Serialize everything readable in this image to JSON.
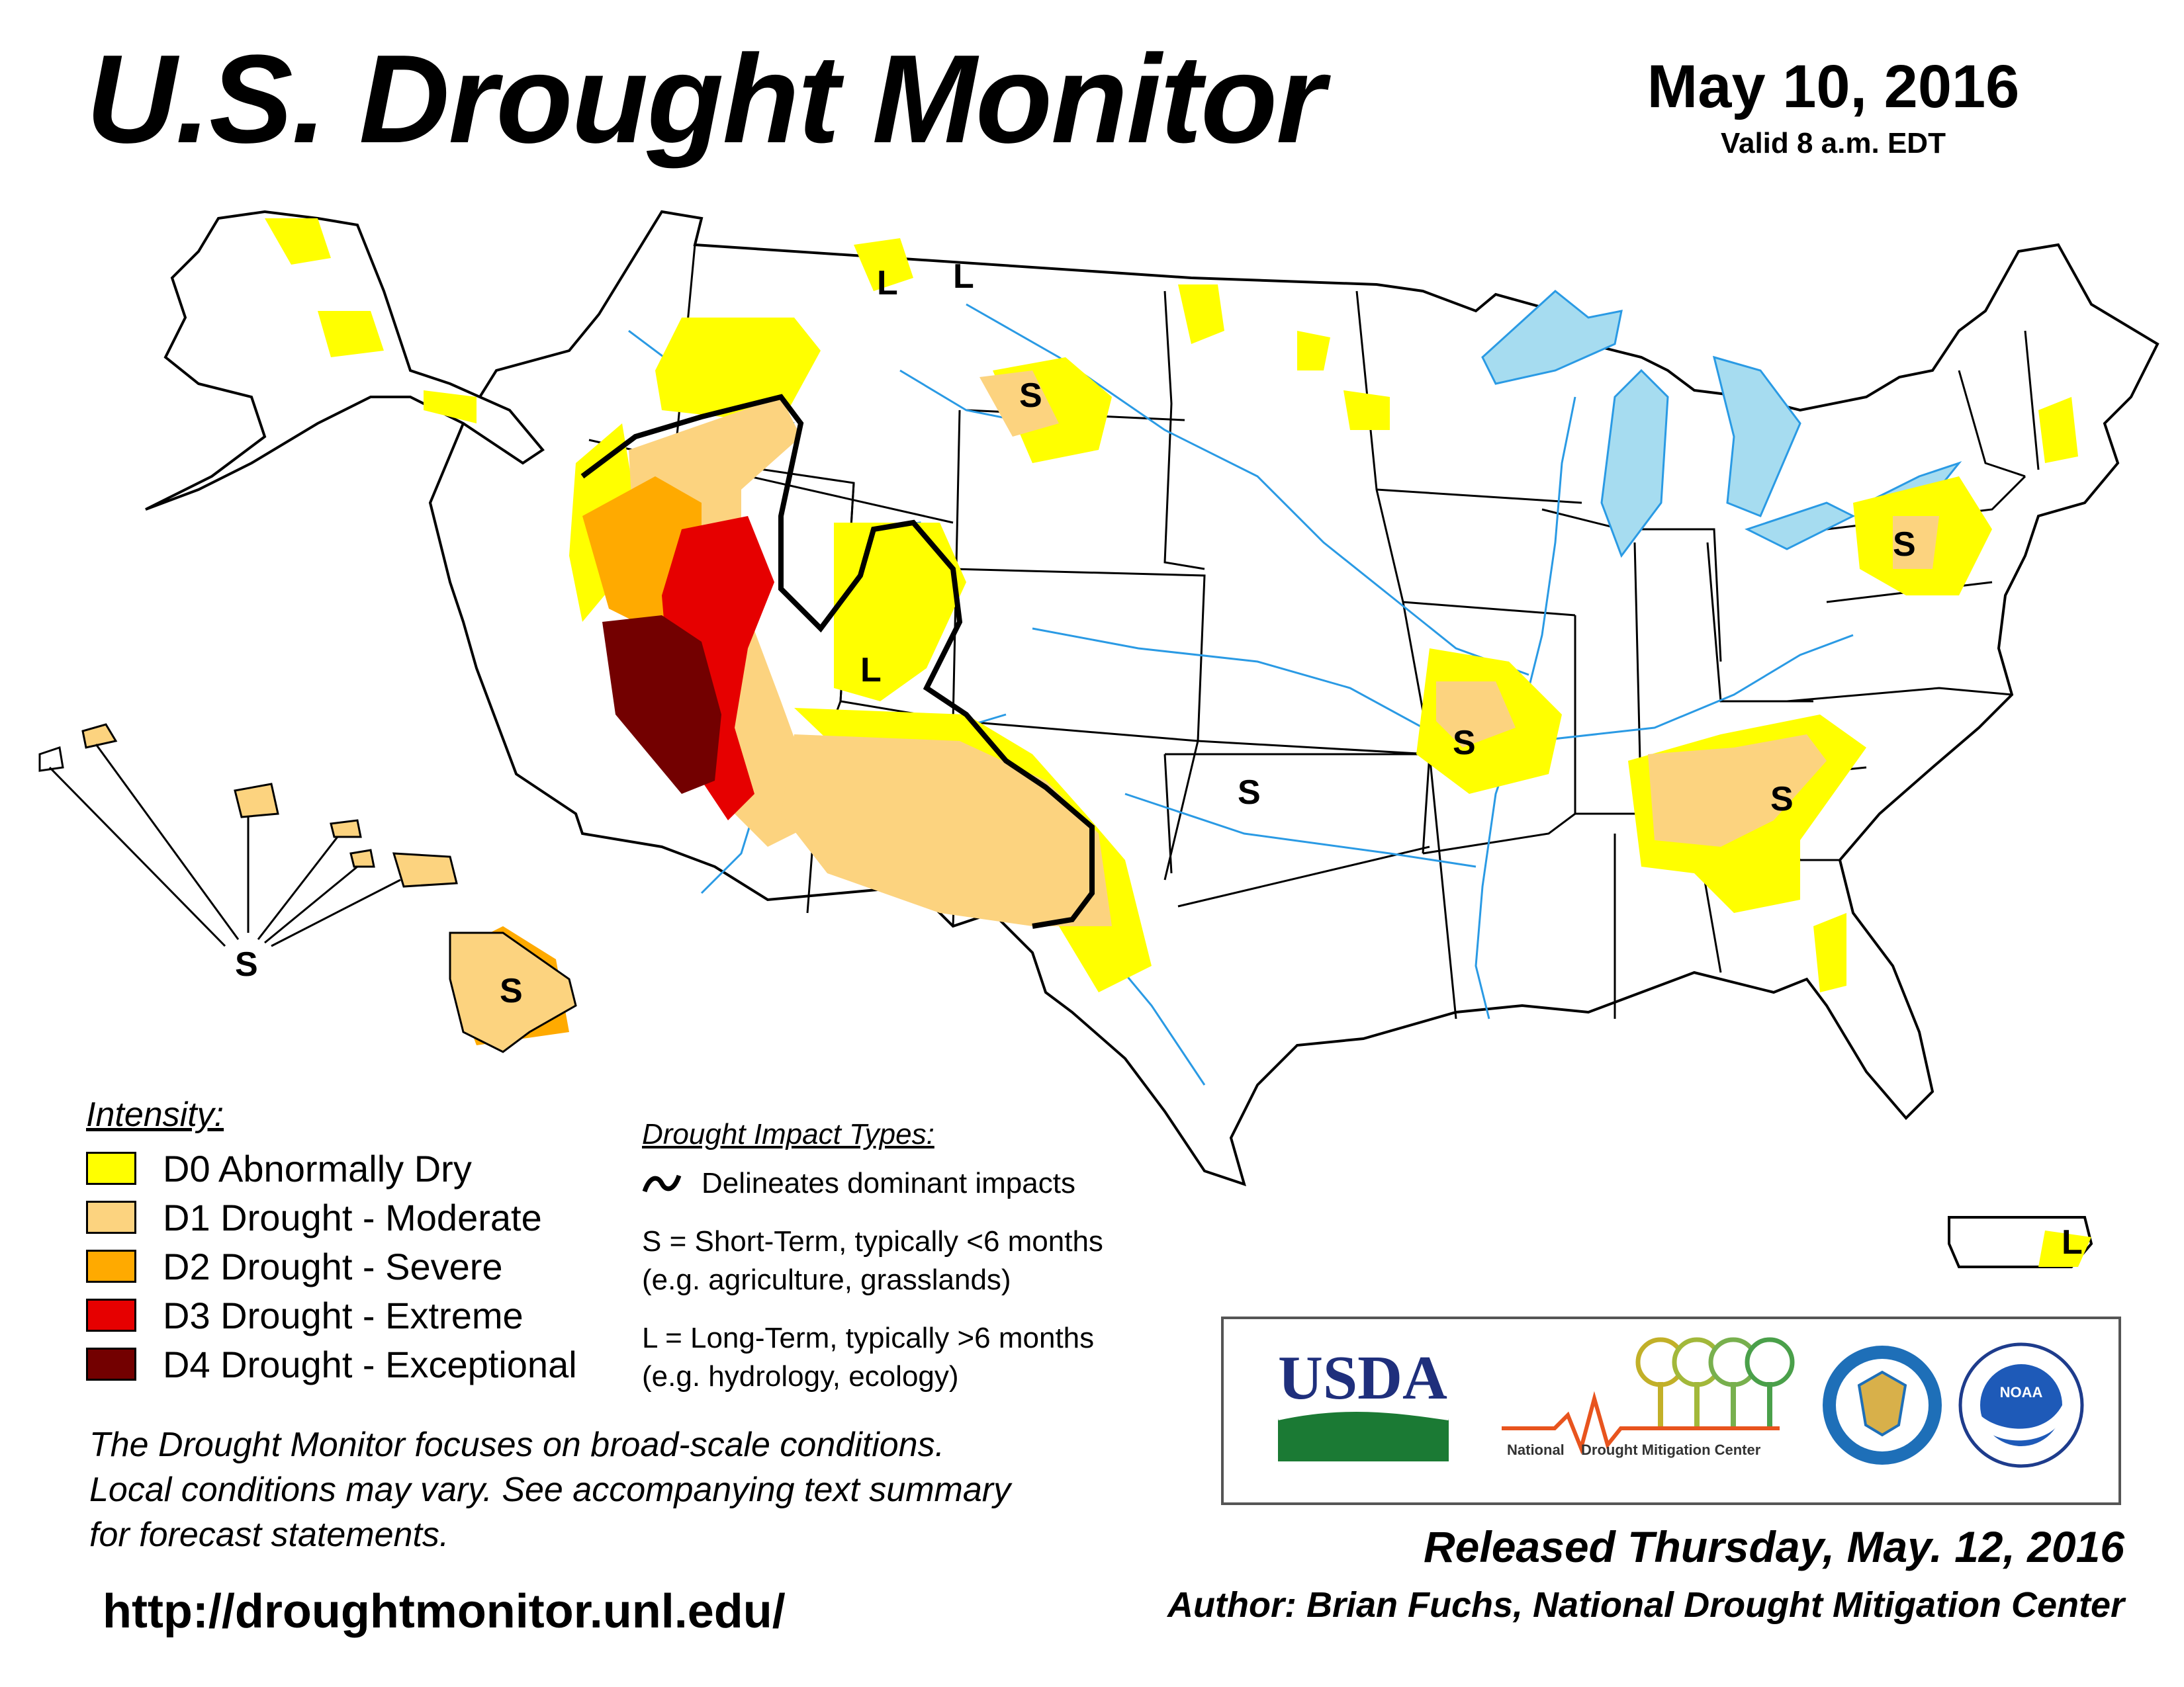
{
  "header": {
    "title": "U.S. Drought Monitor",
    "map_date": "May 10, 2016",
    "valid_time": "Valid 8 a.m. EDT"
  },
  "colors": {
    "D0": "#ffff00",
    "D1": "#fcd37f",
    "D2": "#ffaa00",
    "D3": "#e60000",
    "D4": "#730000",
    "water": "#a6dcf0",
    "rivers": "#2a9ae4"
  },
  "legend": {
    "heading": "Intensity:",
    "items": [
      {
        "code": "D0",
        "label": "D0 Abnormally Dry",
        "color": "#ffff00"
      },
      {
        "code": "D1",
        "label": "D1 Drought - Moderate",
        "color": "#fcd37f"
      },
      {
        "code": "D2",
        "label": "D2 Drought - Severe",
        "color": "#ffaa00"
      },
      {
        "code": "D3",
        "label": "D3 Drought - Extreme",
        "color": "#e60000"
      },
      {
        "code": "D4",
        "label": "D4 Drought - Exceptional",
        "color": "#730000"
      }
    ]
  },
  "impacts": {
    "heading": "Drought Impact Types:",
    "delineates": "Delineates dominant impacts",
    "short_term_1": "S = Short-Term, typically <6 months",
    "short_term_2": "(e.g. agriculture, grasslands)",
    "long_term_1": "L = Long-Term, typically >6 months",
    "long_term_2": "(e.g. hydrology, ecology)"
  },
  "map_labels": {
    "s": "S",
    "l": "L"
  },
  "footnote": {
    "line1": "The Drought Monitor focuses on broad-scale conditions.",
    "line2": "Local conditions may vary. See accompanying text summary",
    "line3": "for forecast statements."
  },
  "url": "http://droughtmonitor.unl.edu/",
  "logos": {
    "usda": "USDA",
    "ndmc_1": "National",
    "ndmc_2": "Drought Mitigation Center",
    "commerce_icon": "department-of-commerce-seal-icon",
    "noaa": "NOAA"
  },
  "release": {
    "released": "Released Thursday, May. 12, 2016",
    "author": "Author: Brian Fuchs, National Drought Mitigation Center"
  }
}
